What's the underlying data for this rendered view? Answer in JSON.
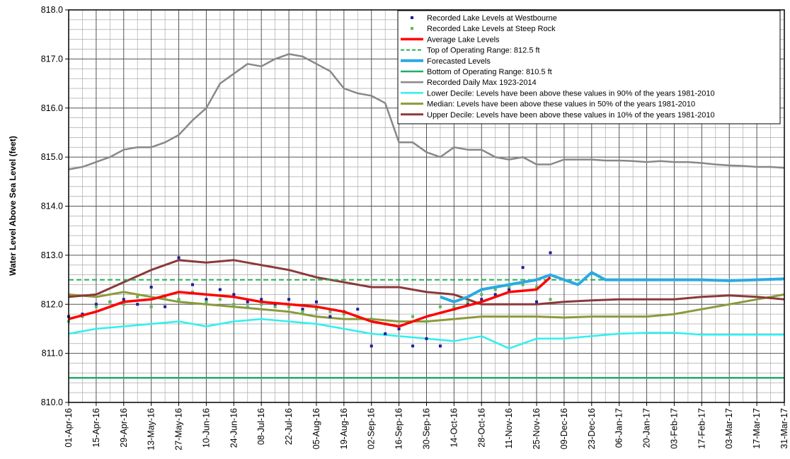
{
  "chart_data": {
    "type": "line",
    "y_label": "Water Level Above Sea Level (feet)",
    "ylim": [
      810,
      818
    ],
    "yticks": [
      {
        "value": 810,
        "label": "810.0"
      },
      {
        "value": 811,
        "label": "811.0"
      },
      {
        "value": 812,
        "label": "812.0"
      },
      {
        "value": 813,
        "label": "813.0"
      },
      {
        "value": 814,
        "label": "814.0"
      },
      {
        "value": 815,
        "label": "815.0"
      },
      {
        "value": 816,
        "label": "816.0"
      },
      {
        "value": 817,
        "label": "817.0"
      },
      {
        "value": 818,
        "label": "818.0"
      }
    ],
    "xlim": [
      "2016-04-01",
      "2017-03-31"
    ],
    "xticks": [
      {
        "value": "2016-04-01",
        "label": "01-Apr-16"
      },
      {
        "value": "2016-04-15",
        "label": "15-Apr-16"
      },
      {
        "value": "2016-04-29",
        "label": "29-Apr-16"
      },
      {
        "value": "2016-05-13",
        "label": "13-May-16"
      },
      {
        "value": "2016-05-27",
        "label": "27-May-16"
      },
      {
        "value": "2016-06-10",
        "label": "10-Jun-16"
      },
      {
        "value": "2016-06-24",
        "label": "24-Jun-16"
      },
      {
        "value": "2016-07-08",
        "label": "08-Jul-16"
      },
      {
        "value": "2016-07-22",
        "label": "22-Jul-16"
      },
      {
        "value": "2016-08-05",
        "label": "05-Aug-16"
      },
      {
        "value": "2016-08-19",
        "label": "19-Aug-16"
      },
      {
        "value": "2016-09-02",
        "label": "02-Sep-16"
      },
      {
        "value": "2016-09-16",
        "label": "16-Sep-16"
      },
      {
        "value": "2016-09-30",
        "label": "30-Sep-16"
      },
      {
        "value": "2016-10-14",
        "label": "14-Oct-16"
      },
      {
        "value": "2016-10-28",
        "label": "28-Oct-16"
      },
      {
        "value": "2016-11-11",
        "label": "11-Nov-16"
      },
      {
        "value": "2016-11-25",
        "label": "25-Nov-16"
      },
      {
        "value": "2016-12-09",
        "label": "09-Dec-16"
      },
      {
        "value": "2016-12-23",
        "label": "23-Dec-16"
      },
      {
        "value": "2017-01-06",
        "label": "06-Jan-17"
      },
      {
        "value": "2017-01-20",
        "label": "20-Jan-17"
      },
      {
        "value": "2017-02-03",
        "label": "03-Feb-17"
      },
      {
        "value": "2017-02-17",
        "label": "17-Feb-17"
      },
      {
        "value": "2017-03-03",
        "label": "03-Mar-17"
      },
      {
        "value": "2017-03-17",
        "label": "17-Mar-17"
      },
      {
        "value": "2017-03-31",
        "label": "31-Mar-17"
      }
    ],
    "grid": true,
    "legend": "upper right",
    "series": [
      {
        "name": "Recorded Lake Levels at Westbourne",
        "type": "scatter",
        "color": "#1c1ca0",
        "x": [
          "2016-04-01",
          "2016-04-08",
          "2016-04-15",
          "2016-04-22",
          "2016-04-29",
          "2016-05-06",
          "2016-05-13",
          "2016-05-20",
          "2016-05-27",
          "2016-06-03",
          "2016-06-10",
          "2016-06-17",
          "2016-06-24",
          "2016-07-01",
          "2016-07-08",
          "2016-07-15",
          "2016-07-22",
          "2016-07-29",
          "2016-08-05",
          "2016-08-12",
          "2016-08-19",
          "2016-08-26",
          "2016-09-02",
          "2016-09-09",
          "2016-09-16",
          "2016-09-23",
          "2016-09-30",
          "2016-10-07",
          "2016-10-14",
          "2016-10-21",
          "2016-10-28",
          "2016-11-04",
          "2016-11-11",
          "2016-11-18",
          "2016-11-25",
          "2016-12-02"
        ],
        "values": [
          811.75,
          811.8,
          812.0,
          812.05,
          812.1,
          812.0,
          812.35,
          811.95,
          812.95,
          812.4,
          812.1,
          812.3,
          812.2,
          812.05,
          812.1,
          812.0,
          812.1,
          811.9,
          812.05,
          811.75,
          811.85,
          811.9,
          811.15,
          811.4,
          811.5,
          811.15,
          811.3,
          811.15,
          811.9,
          812.0,
          812.1,
          812.2,
          812.3,
          812.75,
          812.05,
          813.05
        ]
      },
      {
        "name": "Recorded Lake Levels at Steep Rock",
        "type": "scatter",
        "color": "#5cb85c",
        "x": [
          "2016-04-01",
          "2016-04-08",
          "2016-04-15",
          "2016-04-22",
          "2016-04-29",
          "2016-05-06",
          "2016-05-13",
          "2016-05-20",
          "2016-05-27",
          "2016-06-03",
          "2016-06-10",
          "2016-06-17",
          "2016-06-24",
          "2016-07-01",
          "2016-07-08",
          "2016-07-15",
          "2016-07-22",
          "2016-07-29",
          "2016-08-05",
          "2016-08-12",
          "2016-08-19",
          "2016-08-26",
          "2016-09-02",
          "2016-09-09",
          "2016-09-16",
          "2016-09-23",
          "2016-09-30",
          "2016-10-07",
          "2016-10-14",
          "2016-10-21",
          "2016-10-28",
          "2016-11-04",
          "2016-11-11",
          "2016-11-18",
          "2016-11-25",
          "2016-12-02"
        ],
        "values": [
          811.65,
          811.75,
          811.95,
          812.05,
          812.0,
          812.15,
          811.95,
          812.15,
          812.1,
          812.25,
          812.05,
          812.1,
          812.0,
          811.95,
          812.0,
          811.95,
          811.95,
          811.85,
          811.9,
          811.85,
          811.8,
          811.75,
          811.7,
          811.6,
          811.55,
          811.75,
          811.65,
          811.95,
          811.95,
          812.05,
          812.2,
          812.3,
          812.35,
          812.4,
          812.35,
          812.1
        ]
      },
      {
        "name": "Average Lake Levels",
        "type": "line",
        "color": "#ff0000",
        "x": [
          "2016-04-01",
          "2016-04-15",
          "2016-04-29",
          "2016-05-13",
          "2016-05-27",
          "2016-06-10",
          "2016-06-24",
          "2016-07-08",
          "2016-07-22",
          "2016-08-05",
          "2016-08-19",
          "2016-09-02",
          "2016-09-16",
          "2016-09-30",
          "2016-10-14",
          "2016-10-28",
          "2016-11-11",
          "2016-11-25",
          "2016-12-02"
        ],
        "values": [
          811.7,
          811.85,
          812.05,
          812.1,
          812.25,
          812.2,
          812.15,
          812.05,
          812.0,
          811.95,
          811.85,
          811.65,
          811.55,
          811.75,
          811.9,
          812.05,
          812.25,
          812.3,
          812.55
        ]
      },
      {
        "name": "Top of Operating Range: 812.5 ft",
        "type": "line",
        "linestyle": "dashed",
        "color": "#20b050",
        "x": [
          "2016-04-01",
          "2017-03-31"
        ],
        "values": [
          812.5,
          812.5
        ]
      },
      {
        "name": "Forecasted Levels",
        "type": "line",
        "color": "#29abe2",
        "x": [
          "2016-10-07",
          "2016-10-14",
          "2016-10-21",
          "2016-10-28",
          "2016-11-04",
          "2016-11-11",
          "2016-11-18",
          "2016-11-25",
          "2016-12-02",
          "2016-12-09",
          "2016-12-16",
          "2016-12-23",
          "2016-12-30",
          "2017-01-06",
          "2017-01-20",
          "2017-02-03",
          "2017-02-17",
          "2017-03-03",
          "2017-03-17",
          "2017-03-31"
        ],
        "values": [
          812.15,
          812.05,
          812.15,
          812.3,
          812.35,
          812.4,
          812.45,
          812.5,
          812.6,
          812.5,
          812.4,
          812.65,
          812.5,
          812.5,
          812.5,
          812.5,
          812.5,
          812.48,
          812.5,
          812.52
        ]
      },
      {
        "name": "Bottom of Operating Range: 810.5 ft",
        "type": "line",
        "color": "#1fae6a",
        "x": [
          "2016-04-01",
          "2017-03-31"
        ],
        "values": [
          810.5,
          810.5
        ]
      },
      {
        "name": "Recorded Daily Max 1923-2014",
        "type": "line",
        "color": "#888888",
        "x": [
          "2016-04-01",
          "2016-04-08",
          "2016-04-15",
          "2016-04-22",
          "2016-04-29",
          "2016-05-06",
          "2016-05-13",
          "2016-05-20",
          "2016-05-27",
          "2016-06-03",
          "2016-06-10",
          "2016-06-17",
          "2016-06-24",
          "2016-07-01",
          "2016-07-08",
          "2016-07-15",
          "2016-07-22",
          "2016-07-29",
          "2016-08-05",
          "2016-08-12",
          "2016-08-19",
          "2016-08-26",
          "2016-09-02",
          "2016-09-09",
          "2016-09-16",
          "2016-09-23",
          "2016-09-30",
          "2016-10-07",
          "2016-10-14",
          "2016-10-21",
          "2016-10-28",
          "2016-11-04",
          "2016-11-11",
          "2016-11-18",
          "2016-11-25",
          "2016-12-02",
          "2016-12-09",
          "2016-12-16",
          "2016-12-23",
          "2016-12-30",
          "2017-01-06",
          "2017-01-13",
          "2017-01-20",
          "2017-01-27",
          "2017-02-03",
          "2017-02-10",
          "2017-02-17",
          "2017-02-24",
          "2017-03-03",
          "2017-03-10",
          "2017-03-17",
          "2017-03-24",
          "2017-03-31"
        ],
        "values": [
          814.75,
          814.8,
          814.9,
          815.0,
          815.15,
          815.2,
          815.2,
          815.3,
          815.45,
          815.75,
          816.0,
          816.5,
          816.7,
          816.9,
          816.85,
          817.0,
          817.1,
          817.05,
          816.9,
          816.75,
          816.4,
          816.3,
          816.25,
          816.1,
          815.3,
          815.3,
          815.1,
          815.0,
          815.2,
          815.15,
          815.15,
          815.0,
          814.95,
          815.0,
          814.85,
          814.85,
          814.95,
          814.95,
          814.95,
          814.93,
          814.93,
          814.92,
          814.9,
          814.92,
          814.9,
          814.9,
          814.88,
          814.85,
          814.83,
          814.82,
          814.8,
          814.8,
          814.78
        ]
      },
      {
        "name": "Lower Decile: Levels have been above these values in 90% of the years 1981-2010",
        "type": "line",
        "color": "#2ff0f0",
        "x": [
          "2016-04-01",
          "2016-04-15",
          "2016-04-29",
          "2016-05-13",
          "2016-05-27",
          "2016-06-10",
          "2016-06-24",
          "2016-07-08",
          "2016-07-22",
          "2016-08-05",
          "2016-08-19",
          "2016-09-02",
          "2016-09-16",
          "2016-09-30",
          "2016-10-14",
          "2016-10-28",
          "2016-11-11",
          "2016-11-25",
          "2016-12-09",
          "2016-12-23",
          "2017-01-06",
          "2017-01-20",
          "2017-02-03",
          "2017-02-17",
          "2017-03-03",
          "2017-03-17",
          "2017-03-31"
        ],
        "values": [
          811.4,
          811.5,
          811.55,
          811.6,
          811.65,
          811.55,
          811.65,
          811.7,
          811.65,
          811.6,
          811.5,
          811.4,
          811.35,
          811.3,
          811.25,
          811.35,
          811.1,
          811.3,
          811.3,
          811.35,
          811.4,
          811.42,
          811.42,
          811.38,
          811.38,
          811.38,
          811.38
        ]
      },
      {
        "name": "Median: Levels have been above these values in 50% of the years 1981-2010",
        "type": "line",
        "color": "#8c9a3c",
        "x": [
          "2016-04-01",
          "2016-04-15",
          "2016-04-29",
          "2016-05-13",
          "2016-05-27",
          "2016-06-10",
          "2016-06-24",
          "2016-07-08",
          "2016-07-22",
          "2016-08-05",
          "2016-08-19",
          "2016-09-02",
          "2016-09-16",
          "2016-09-30",
          "2016-10-14",
          "2016-10-28",
          "2016-11-11",
          "2016-11-25",
          "2016-12-09",
          "2016-12-23",
          "2017-01-06",
          "2017-01-20",
          "2017-02-03",
          "2017-02-17",
          "2017-03-03",
          "2017-03-17",
          "2017-03-31"
        ],
        "values": [
          812.2,
          812.15,
          812.25,
          812.15,
          812.05,
          812.0,
          811.95,
          811.9,
          811.85,
          811.75,
          811.7,
          811.7,
          811.65,
          811.65,
          811.7,
          811.75,
          811.75,
          811.75,
          811.73,
          811.75,
          811.75,
          811.75,
          811.8,
          811.9,
          812.0,
          812.1,
          812.2
        ]
      },
      {
        "name": "Upper Decile: Levels have been above these values in 10% of the years 1981-2010",
        "type": "line",
        "color": "#8b3a3a",
        "x": [
          "2016-04-01",
          "2016-04-15",
          "2016-04-29",
          "2016-05-13",
          "2016-05-27",
          "2016-06-10",
          "2016-06-24",
          "2016-07-08",
          "2016-07-22",
          "2016-08-05",
          "2016-08-19",
          "2016-09-02",
          "2016-09-16",
          "2016-09-30",
          "2016-10-14",
          "2016-10-28",
          "2016-11-11",
          "2016-11-25",
          "2016-12-09",
          "2016-12-23",
          "2017-01-06",
          "2017-01-20",
          "2017-02-03",
          "2017-02-17",
          "2017-03-03",
          "2017-03-17",
          "2017-03-31"
        ],
        "values": [
          812.15,
          812.2,
          812.45,
          812.7,
          812.9,
          812.85,
          812.9,
          812.8,
          812.7,
          812.55,
          812.45,
          812.35,
          812.35,
          812.25,
          812.2,
          812.0,
          812.0,
          812.0,
          812.05,
          812.08,
          812.1,
          812.1,
          812.1,
          812.15,
          812.18,
          812.15,
          812.1
        ]
      }
    ]
  }
}
